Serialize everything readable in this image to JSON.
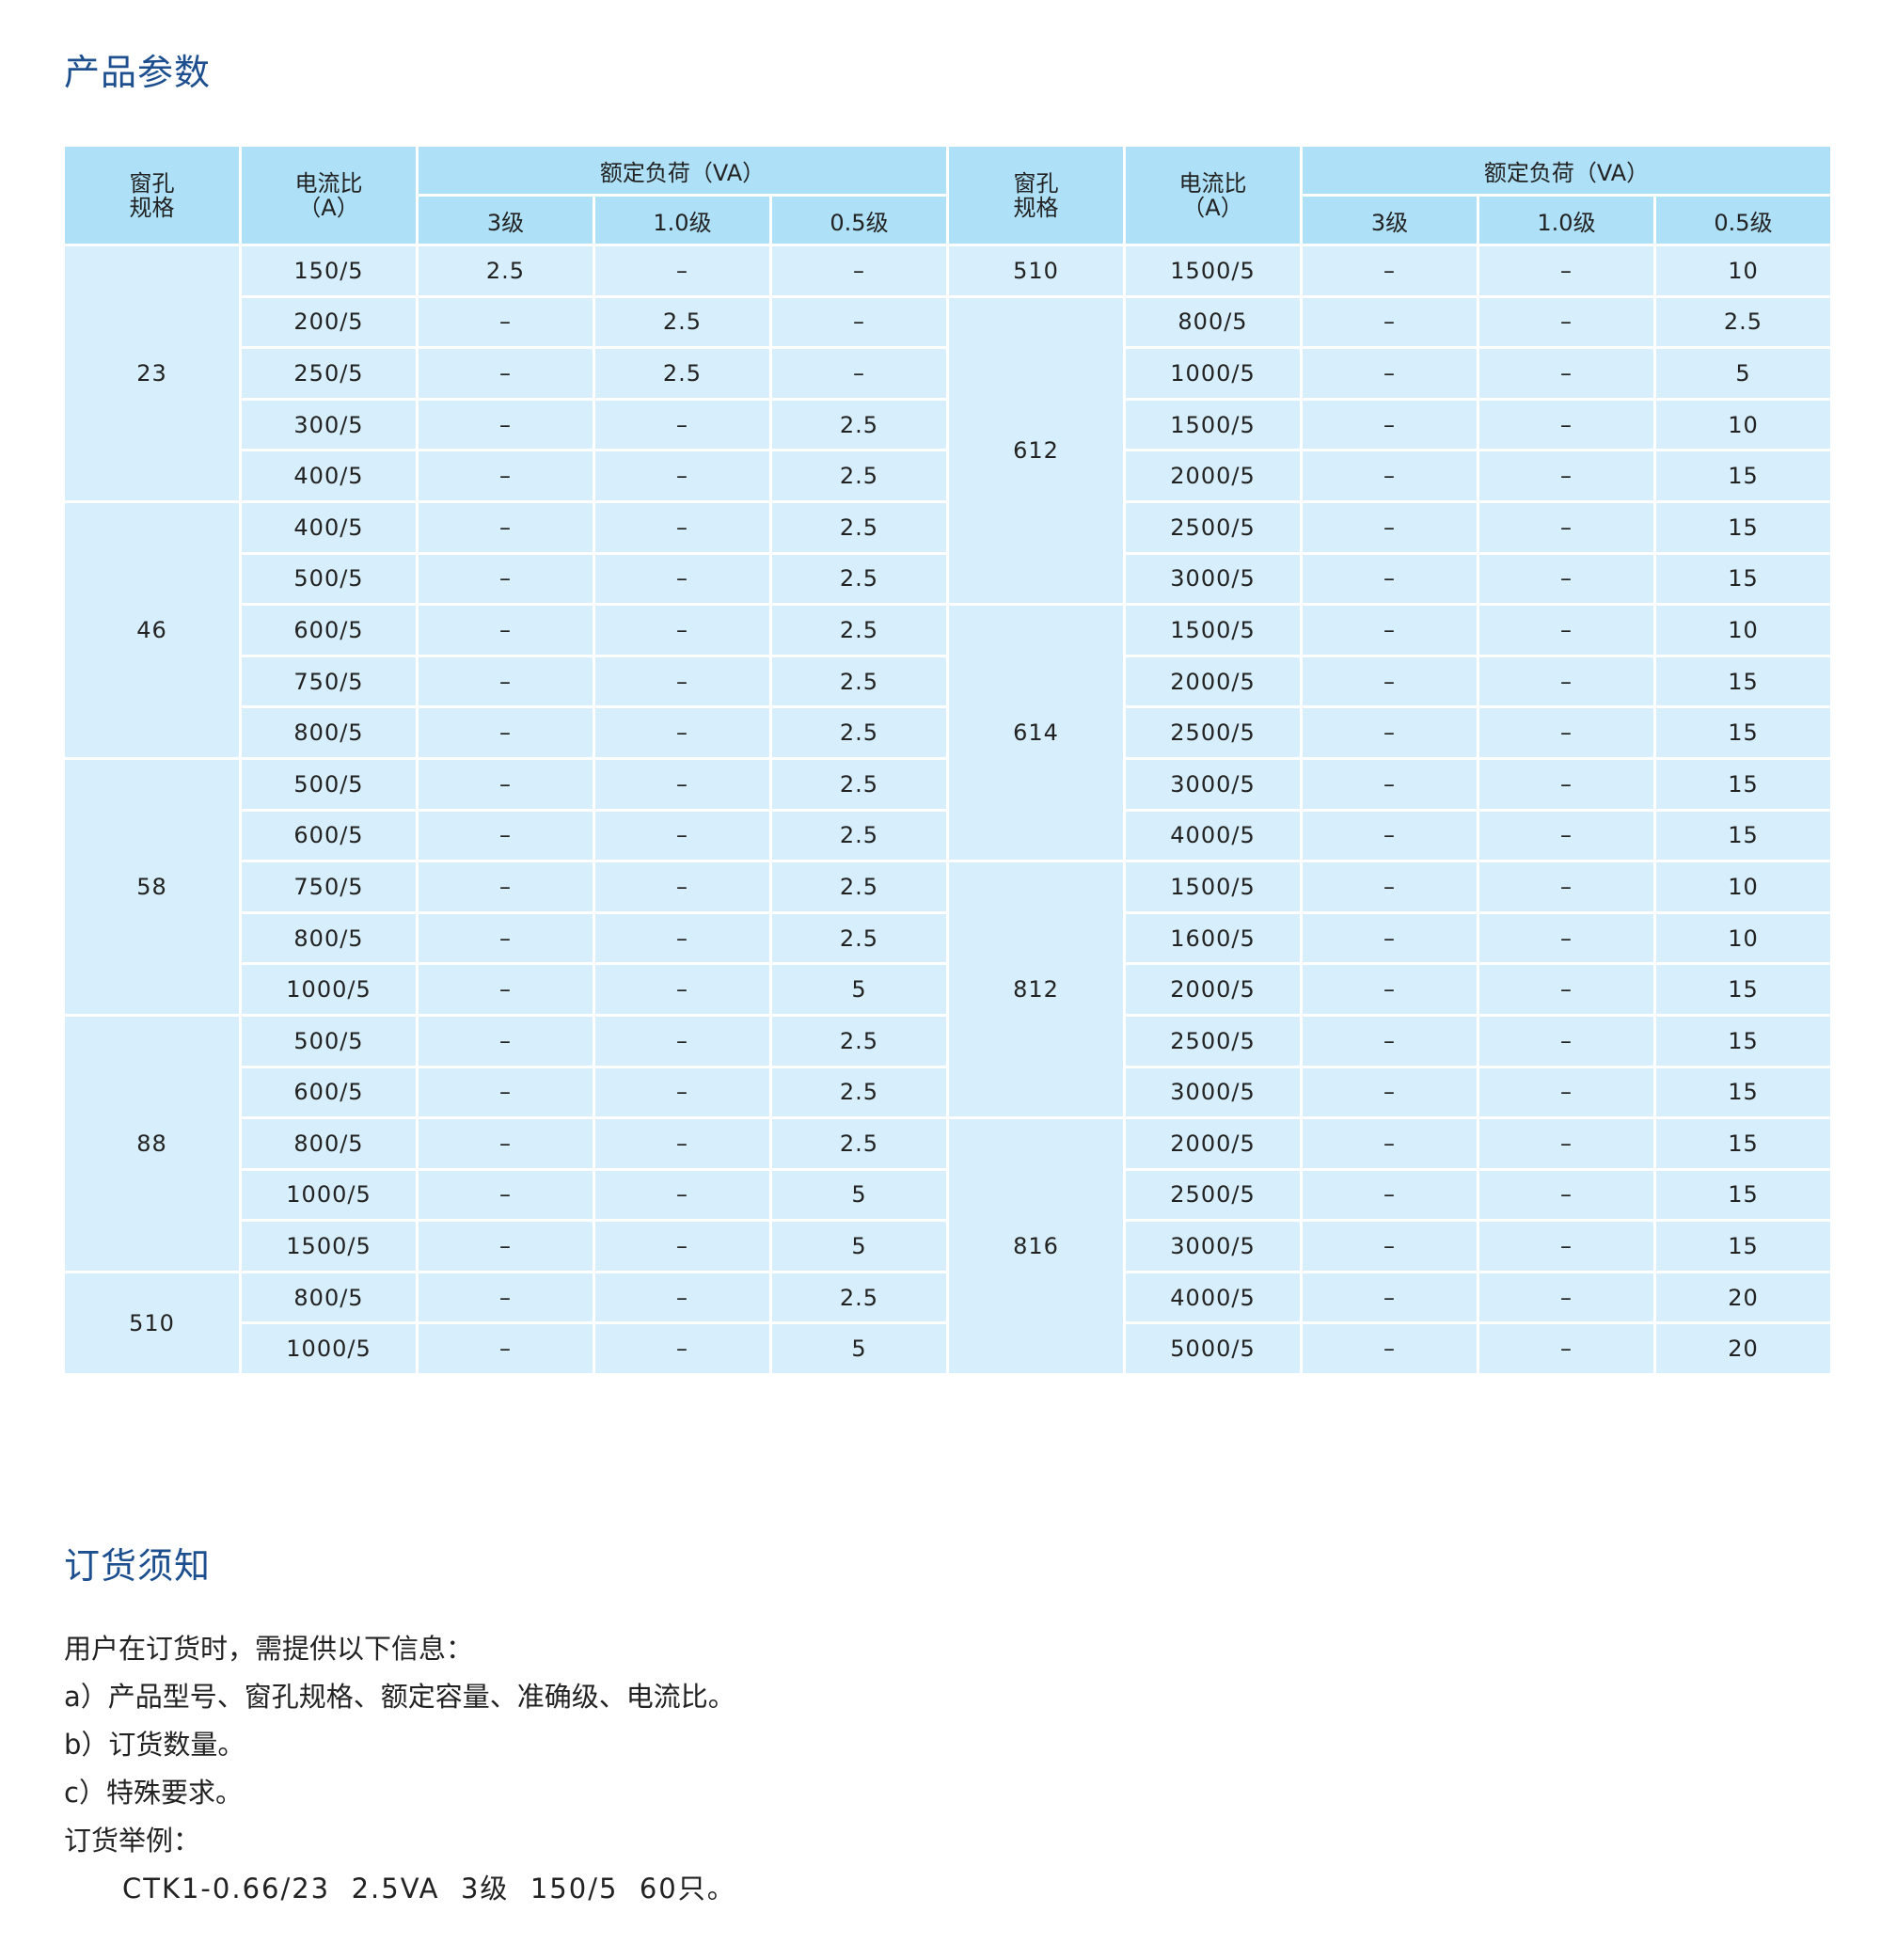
{
  "section1_title": "产品参数",
  "section2_title": "订货须知",
  "table": {
    "headers": {
      "window": "窗孔\n规格",
      "ratio": "电流比\n（A）",
      "load": "额定负荷（VA）",
      "classes": [
        "3级",
        "1.0级",
        "0.5级"
      ]
    },
    "left_groups": [
      {
        "window": "23",
        "rows": [
          [
            "150/5",
            "2.5",
            "–",
            "–"
          ],
          [
            "200/5",
            "–",
            "2.5",
            "–"
          ],
          [
            "250/5",
            "–",
            "2.5",
            "–"
          ],
          [
            "300/5",
            "–",
            "–",
            "2.5"
          ],
          [
            "400/5",
            "–",
            "–",
            "2.5"
          ]
        ]
      },
      {
        "window": "46",
        "rows": [
          [
            "400/5",
            "–",
            "–",
            "2.5"
          ],
          [
            "500/5",
            "–",
            "–",
            "2.5"
          ],
          [
            "600/5",
            "–",
            "–",
            "2.5"
          ],
          [
            "750/5",
            "–",
            "–",
            "2.5"
          ],
          [
            "800/5",
            "–",
            "–",
            "2.5"
          ]
        ]
      },
      {
        "window": "58",
        "rows": [
          [
            "500/5",
            "–",
            "–",
            "2.5"
          ],
          [
            "600/5",
            "–",
            "–",
            "2.5"
          ],
          [
            "750/5",
            "–",
            "–",
            "2.5"
          ],
          [
            "800/5",
            "–",
            "–",
            "2.5"
          ],
          [
            "1000/5",
            "–",
            "–",
            "5"
          ]
        ]
      },
      {
        "window": "88",
        "rows": [
          [
            "500/5",
            "–",
            "–",
            "2.5"
          ],
          [
            "600/5",
            "–",
            "–",
            "2.5"
          ],
          [
            "800/5",
            "–",
            "–",
            "2.5"
          ],
          [
            "1000/5",
            "–",
            "–",
            "5"
          ],
          [
            "1500/5",
            "–",
            "–",
            "5"
          ]
        ]
      },
      {
        "window": "510",
        "rows": [
          [
            "800/5",
            "–",
            "–",
            "2.5"
          ],
          [
            "1000/5",
            "–",
            "–",
            "5"
          ]
        ]
      }
    ],
    "right_groups": [
      {
        "window": "510",
        "rows": [
          [
            "1500/5",
            "–",
            "–",
            "10"
          ]
        ]
      },
      {
        "window": "612",
        "rows": [
          [
            "800/5",
            "–",
            "–",
            "2.5"
          ],
          [
            "1000/5",
            "–",
            "–",
            "5"
          ],
          [
            "1500/5",
            "–",
            "–",
            "10"
          ],
          [
            "2000/5",
            "–",
            "–",
            "15"
          ],
          [
            "2500/5",
            "–",
            "–",
            "15"
          ],
          [
            "3000/5",
            "–",
            "–",
            "15"
          ]
        ]
      },
      {
        "window": "614",
        "rows": [
          [
            "1500/5",
            "–",
            "–",
            "10"
          ],
          [
            "2000/5",
            "–",
            "–",
            "15"
          ],
          [
            "2500/5",
            "–",
            "–",
            "15"
          ],
          [
            "3000/5",
            "–",
            "–",
            "15"
          ],
          [
            "4000/5",
            "–",
            "–",
            "15"
          ]
        ]
      },
      {
        "window": "812",
        "rows": [
          [
            "1500/5",
            "–",
            "–",
            "10"
          ],
          [
            "1600/5",
            "–",
            "–",
            "10"
          ],
          [
            "2000/5",
            "–",
            "–",
            "15"
          ],
          [
            "2500/5",
            "–",
            "–",
            "15"
          ],
          [
            "3000/5",
            "–",
            "–",
            "15"
          ]
        ]
      },
      {
        "window": "816",
        "rows": [
          [
            "2000/5",
            "–",
            "–",
            "15"
          ],
          [
            "2500/5",
            "–",
            "–",
            "15"
          ],
          [
            "3000/5",
            "–",
            "–",
            "15"
          ],
          [
            "4000/5",
            "–",
            "–",
            "20"
          ],
          [
            "5000/5",
            "–",
            "–",
            "20"
          ]
        ]
      }
    ]
  },
  "notes": {
    "intro": "用户在订货时，需提供以下信息：",
    "a": "a）产品型号、窗孔规格、额定容量、准确级、电流比。",
    "b": "b）订货数量。",
    "c": "c）特殊要求。",
    "example_label": "订货举例：",
    "example": "CTK1-0.66/23  2.5VA  3级  150/5  60只。"
  },
  "colors": {
    "title": "#1d4f8f",
    "header_bg": "#aee1f8",
    "body_bg": "#d7effc"
  }
}
